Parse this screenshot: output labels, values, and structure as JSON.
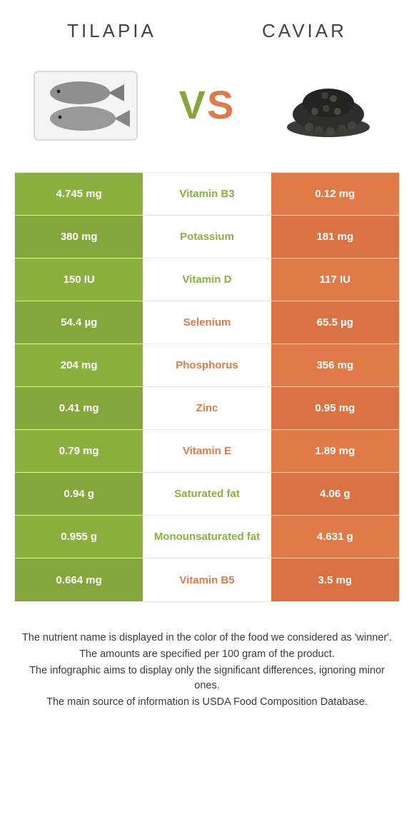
{
  "header": {
    "left_title": "TILAPIA",
    "right_title": "CAVIAR",
    "vs_v": "V",
    "vs_s": "S"
  },
  "colors": {
    "green": "#8cb03e",
    "green_alt": "#84a63a",
    "orange": "#e07a49",
    "orange_alt": "#db7244",
    "mid_bg": "#ffffff",
    "border": "#e8e8e8",
    "text_dark": "#3a3a3a"
  },
  "table": {
    "left_bg_odd": "#8cb03e",
    "left_bg_even": "#84a63a",
    "right_bg_odd": "#e07a49",
    "right_bg_even": "#db7244",
    "rows": [
      {
        "left": "4.745 mg",
        "label": "Vitamin B3",
        "right": "0.12 mg",
        "winner": "left"
      },
      {
        "left": "380 mg",
        "label": "Potassium",
        "right": "181 mg",
        "winner": "left"
      },
      {
        "left": "150 IU",
        "label": "Vitamin D",
        "right": "117 IU",
        "winner": "left"
      },
      {
        "left": "54.4 µg",
        "label": "Selenium",
        "right": "65.5 µg",
        "winner": "right"
      },
      {
        "left": "204 mg",
        "label": "Phosphorus",
        "right": "356 mg",
        "winner": "right"
      },
      {
        "left": "0.41 mg",
        "label": "Zinc",
        "right": "0.95 mg",
        "winner": "right"
      },
      {
        "left": "0.79 mg",
        "label": "Vitamin E",
        "right": "1.89 mg",
        "winner": "right"
      },
      {
        "left": "0.94 g",
        "label": "Saturated fat",
        "right": "4.06 g",
        "winner": "left"
      },
      {
        "left": "0.955 g",
        "label": "Monounsaturated fat",
        "right": "4.631 g",
        "winner": "left"
      },
      {
        "left": "0.664 mg",
        "label": "Vitamin B5",
        "right": "3.5 mg",
        "winner": "right"
      }
    ]
  },
  "footer": {
    "line1": "The nutrient name is displayed in the color of the food we considered as 'winner'.",
    "line2": "The amounts are specified per 100 gram of the product.",
    "line3": "The infographic aims to display only the significant differences, ignoring minor ones.",
    "line4": "The main source of information is USDA Food Composition Database."
  }
}
